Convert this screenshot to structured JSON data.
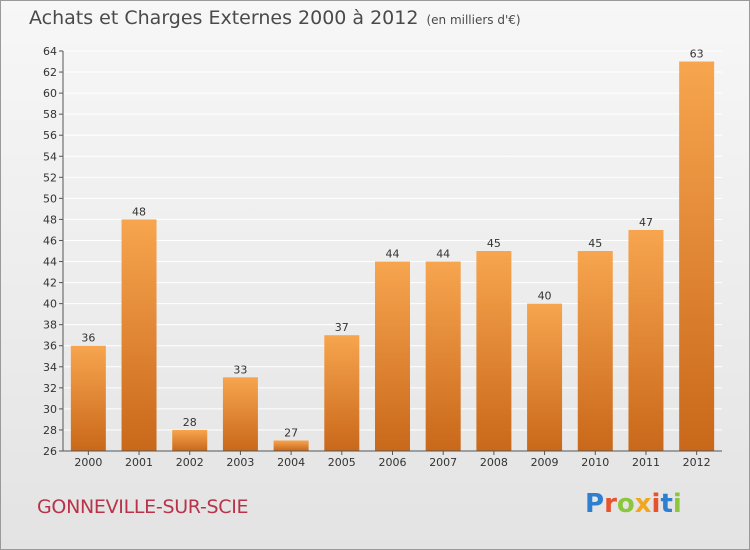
{
  "header": {
    "title": "Achats et Charges Externes 2000 à 2012",
    "unit": "(en milliers d'€)"
  },
  "footer": {
    "commune": "GONNEVILLE-SUR-SCIE",
    "logo": "Proxiti",
    "logo_icon": "proxiti-logo-icon"
  },
  "colors": {
    "bar_light": "#f7a54f",
    "bar_dark": "#c9681a",
    "grid": "#ffffff",
    "axis": "#555555",
    "commune_text": "#b8334a"
  },
  "chart_data": {
    "type": "bar",
    "categories": [
      "2000",
      "2001",
      "2002",
      "2003",
      "2004",
      "2005",
      "2006",
      "2007",
      "2008",
      "2009",
      "2010",
      "2011",
      "2012"
    ],
    "values": [
      36,
      48,
      28,
      33,
      27,
      37,
      44,
      44,
      45,
      40,
      45,
      47,
      63
    ],
    "title": "Achats et Charges Externes 2000 à 2012",
    "subtitle": "(en milliers d'€)",
    "xlabel": "",
    "ylabel": "",
    "ylim": [
      26,
      64
    ],
    "yticks": [
      26,
      28,
      30,
      32,
      34,
      36,
      38,
      40,
      42,
      44,
      46,
      48,
      50,
      52,
      54,
      56,
      58,
      60,
      62,
      64
    ],
    "grid": true,
    "data_labels": true
  }
}
